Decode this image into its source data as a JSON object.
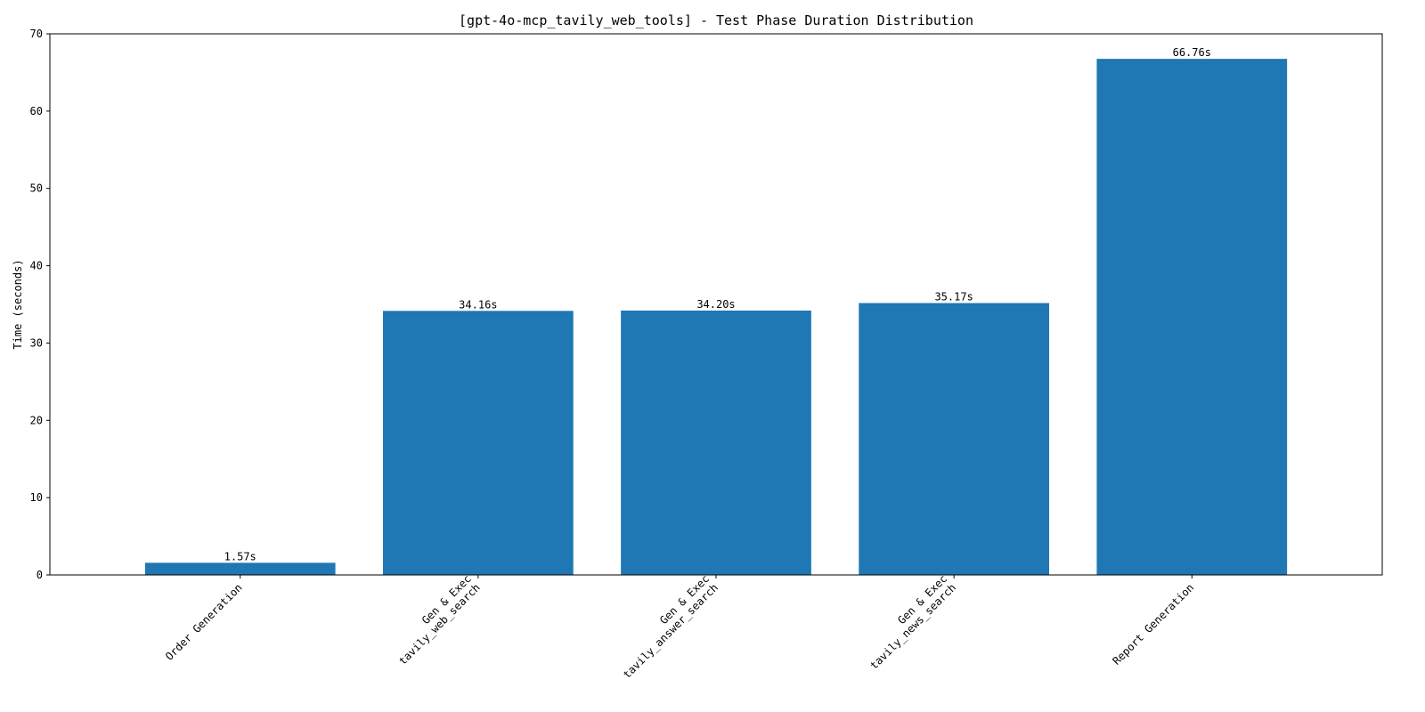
{
  "chart_data": {
    "type": "bar",
    "title": "[gpt-4o-mcp_tavily_web_tools] - Test Phase Duration Distribution",
    "xlabel": "",
    "ylabel": "Time (seconds)",
    "categories": [
      [
        "Order Generation"
      ],
      [
        "Gen & Exec",
        "tavily_web_search"
      ],
      [
        "Gen & Exec",
        "tavily_answer_search"
      ],
      [
        "Gen & Exec",
        "tavily_news_search"
      ],
      [
        "Report Generation"
      ]
    ],
    "values": [
      1.57,
      34.16,
      34.2,
      35.17,
      66.76
    ],
    "data_labels": [
      "1.57s",
      "34.16s",
      "34.20s",
      "35.17s",
      "66.76s"
    ],
    "ylim": [
      0,
      70
    ],
    "yticks": [
      0,
      10,
      20,
      30,
      40,
      50,
      60,
      70
    ],
    "ytick_labels": [
      "0",
      "10",
      "20",
      "30",
      "40",
      "50",
      "60",
      "70"
    ],
    "grid": false,
    "legend": "none",
    "bar_color": "#1f77b4"
  }
}
